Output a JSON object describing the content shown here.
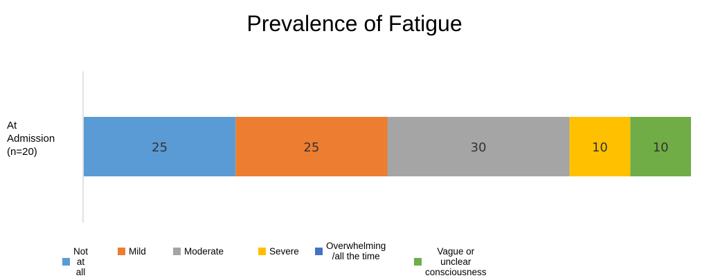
{
  "chart_data": {
    "type": "bar",
    "orientation": "horizontal",
    "stacked": true,
    "title": "Prevalence of Fatigue",
    "categories": [
      "At\nAdmission\n(n=20)"
    ],
    "series": [
      {
        "name": "Not at all",
        "values": [
          25
        ],
        "color": "#5B9BD5"
      },
      {
        "name": "Mild",
        "values": [
          25
        ],
        "color": "#ED7D31"
      },
      {
        "name": "Moderate",
        "values": [
          30
        ],
        "color": "#A5A5A5"
      },
      {
        "name": "Severe",
        "values": [
          10
        ],
        "color": "#FFC000"
      },
      {
        "name": "Overwhelming\n/all the time",
        "values": [
          0
        ],
        "color": "#4472C4"
      },
      {
        "name": "Vague or unclear consciousness",
        "values": [
          10
        ],
        "color": "#70AD47"
      }
    ],
    "xlim": [
      0,
      100
    ],
    "grid": false,
    "legend_position": "bottom"
  }
}
